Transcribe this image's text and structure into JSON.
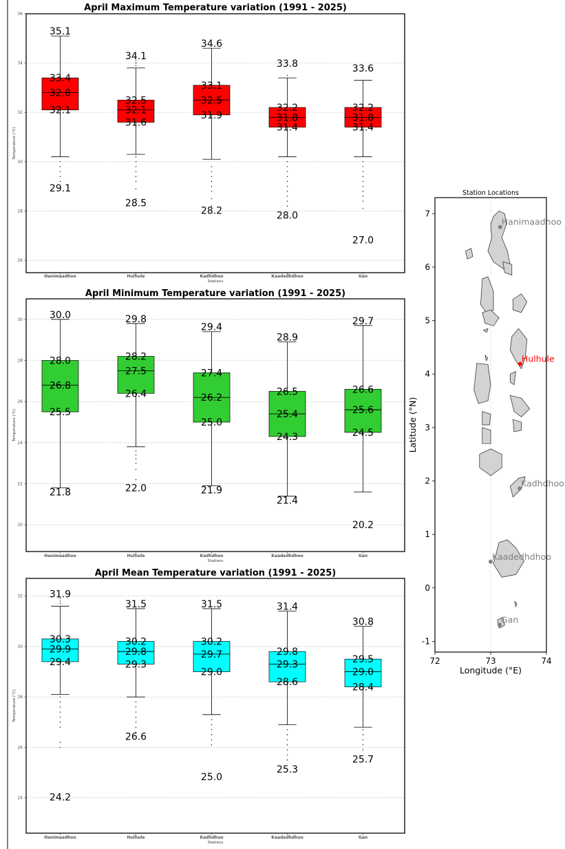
{
  "chart_data": [
    {
      "type": "boxplot",
      "title": "April Maximum Temperature variation (1991 - 2025)",
      "xlabel": "Stations",
      "ylabel": "Temperature (°C)",
      "ylim": [
        25.5,
        36
      ],
      "yticks": [
        26,
        28,
        30,
        32,
        34,
        36
      ],
      "box_color": "#ff0000",
      "highlight_category": "Hulhule",
      "highlight_color": "#ff0000",
      "categories": [
        "Hanimaadhoo",
        "Hulhule",
        "Kadhdhoo",
        "Kaadedhdhoo",
        "Gan"
      ],
      "stats": [
        {
          "whisker_low": 30.2,
          "q1": 32.1,
          "median": 32.8,
          "q3": 33.4,
          "whisker_high": 35.1,
          "min": 29.1,
          "max": 35.1,
          "outliers": [
            29.2,
            29.4,
            29.6,
            29.8,
            30.0
          ]
        },
        {
          "whisker_low": 30.3,
          "q1": 31.6,
          "median": 32.1,
          "q3": 32.5,
          "whisker_high": 33.8,
          "min": 28.5,
          "max": 34.1,
          "outliers": [
            28.5,
            28.9,
            29.2,
            29.4,
            29.6,
            29.8,
            30.0,
            30.2,
            33.9,
            34.0,
            34.1
          ]
        },
        {
          "whisker_low": 30.1,
          "q1": 31.9,
          "median": 32.5,
          "q3": 33.1,
          "whisker_high": 34.6,
          "min": 28.2,
          "max": 34.6,
          "outliers": [
            28.2,
            28.5,
            28.8,
            29.0,
            29.2,
            29.4,
            29.6,
            29.8
          ]
        },
        {
          "whisker_low": 30.2,
          "q1": 31.4,
          "median": 31.8,
          "q3": 32.2,
          "whisker_high": 33.4,
          "min": 28.0,
          "max": 33.8,
          "outliers": [
            28.2,
            28.4,
            28.6,
            28.8,
            29.0,
            29.2,
            29.4,
            29.6,
            29.8,
            30.0,
            33.5
          ]
        },
        {
          "whisker_low": 30.2,
          "q1": 31.4,
          "median": 31.8,
          "q3": 32.2,
          "whisker_high": 33.3,
          "min": 27.0,
          "max": 33.6,
          "outliers": [
            28.1,
            28.4,
            28.6,
            28.8,
            29.0,
            29.2,
            29.4,
            29.6,
            29.8,
            30.0
          ]
        }
      ],
      "labels": [
        {
          "max": "35.1",
          "q3": "33.4",
          "median": "32.8",
          "q1": "32.1",
          "min": "29.1"
        },
        {
          "max": "34.1",
          "q3": "32.5",
          "median": "32.1",
          "q1": "31.6",
          "min": "28.5"
        },
        {
          "max": "34.6",
          "q3": "33.1",
          "median": "32.5",
          "q1": "31.9",
          "min": "28.2"
        },
        {
          "max": "33.8",
          "q3": "32.2",
          "median": "31.8",
          "q1": "31.4",
          "min": "28.0"
        },
        {
          "max": "33.6",
          "q3": "32.2",
          "median": "31.8",
          "q1": "31.4",
          "min": "27.0"
        }
      ],
      "grid": true
    },
    {
      "type": "boxplot",
      "title": "April Minimum Temperature variation (1991 - 2025)",
      "xlabel": "Stations",
      "ylabel": "Temperature (°C)",
      "ylim": [
        18.7,
        31.0
      ],
      "yticks": [
        20,
        22,
        24,
        26,
        28,
        30
      ],
      "box_color": "#32cd32",
      "highlight_category": "Hulhule",
      "highlight_color": "#ff0000",
      "categories": [
        "Hanimaadhoo",
        "Hulhule",
        "Kadhdhoo",
        "Kaadedhdhoo",
        "Gan"
      ],
      "stats": [
        {
          "whisker_low": 21.8,
          "q1": 25.5,
          "median": 26.8,
          "q3": 28.0,
          "whisker_high": 30.0,
          "min": 21.8,
          "max": 30.0,
          "outliers": []
        },
        {
          "whisker_low": 23.8,
          "q1": 26.4,
          "median": 27.5,
          "q3": 28.2,
          "whisker_high": 29.8,
          "min": 22.0,
          "max": 29.8,
          "outliers": [
            22.2,
            22.7,
            23.0,
            23.2,
            23.4,
            23.6
          ]
        },
        {
          "whisker_low": 21.9,
          "q1": 25.0,
          "median": 26.2,
          "q3": 27.4,
          "whisker_high": 29.4,
          "min": 21.9,
          "max": 29.4,
          "outliers": []
        },
        {
          "whisker_low": 21.4,
          "q1": 24.3,
          "median": 25.4,
          "q3": 26.5,
          "whisker_high": 28.9,
          "min": 21.4,
          "max": 28.9,
          "outliers": []
        },
        {
          "whisker_low": 21.6,
          "q1": 24.5,
          "median": 25.6,
          "q3": 26.6,
          "whisker_high": 29.7,
          "min": 20.2,
          "max": 29.7,
          "outliers": []
        }
      ],
      "labels": [
        {
          "max": "30.0",
          "q3": "28.0",
          "median": "26.8",
          "q1": "25.5",
          "min": "21.8"
        },
        {
          "max": "29.8",
          "q3": "28.2",
          "median": "27.5",
          "q1": "26.4",
          "min": "22.0"
        },
        {
          "max": "29.4",
          "q3": "27.4",
          "median": "26.2",
          "q1": "25.0",
          "min": "21.9"
        },
        {
          "max": "28.9",
          "q3": "26.5",
          "median": "25.4",
          "q1": "24.3",
          "min": "21.4"
        },
        {
          "max": "29.7",
          "q3": "26.6",
          "median": "25.6",
          "q1": "24.5",
          "min": "20.2"
        }
      ],
      "grid": true
    },
    {
      "type": "boxplot",
      "title": "April Mean Temperature variation (1991 - 2025)",
      "xlabel": "Stations",
      "ylabel": "Temperature (°C)",
      "ylim": [
        22.6,
        32.7
      ],
      "yticks": [
        24,
        26,
        28,
        30,
        32
      ],
      "box_color": "#00ffff",
      "highlight_category": "Hulhule",
      "highlight_color": "#ff0000",
      "categories": [
        "Hanimaadhoo",
        "Hulhule",
        "Kadhdhoo",
        "Kaadedhdhoo",
        "Gan"
      ],
      "stats": [
        {
          "whisker_low": 28.1,
          "q1": 29.4,
          "median": 29.9,
          "q3": 30.3,
          "whisker_high": 31.6,
          "min": 24.2,
          "max": 31.9,
          "outliers": [
            26.0,
            26.2,
            26.8,
            27.0,
            27.2,
            27.4,
            27.6,
            27.8,
            28.0,
            31.7,
            31.8,
            31.9
          ]
        },
        {
          "whisker_low": 28.0,
          "q1": 29.3,
          "median": 29.8,
          "q3": 30.2,
          "whisker_high": 31.5,
          "min": 26.6,
          "max": 31.5,
          "outliers": [
            26.6,
            26.8,
            27.0,
            27.2,
            27.4,
            27.6,
            27.8
          ]
        },
        {
          "whisker_low": 27.3,
          "q1": 29.0,
          "median": 29.7,
          "q3": 30.2,
          "whisker_high": 31.5,
          "min": 25.0,
          "max": 31.5,
          "outliers": [
            26.1,
            26.3,
            26.5,
            26.7,
            26.9,
            27.1
          ]
        },
        {
          "whisker_low": 26.9,
          "q1": 28.6,
          "median": 29.3,
          "q3": 29.8,
          "whisker_high": 31.4,
          "min": 25.3,
          "max": 31.4,
          "outliers": [
            25.5,
            25.7,
            25.9,
            26.1,
            26.3,
            26.5,
            26.7
          ]
        },
        {
          "whisker_low": 26.8,
          "q1": 28.4,
          "median": 29.0,
          "q3": 29.5,
          "whisker_high": 30.8,
          "min": 25.7,
          "max": 30.8,
          "outliers": [
            25.9,
            26.1,
            26.3,
            26.5,
            26.7
          ]
        }
      ],
      "labels": [
        {
          "max": "31.9",
          "q3": "30.3",
          "median": "29.9",
          "q1": "29.4",
          "min": "24.2"
        },
        {
          "max": "31.5",
          "q3": "30.2",
          "median": "29.8",
          "q1": "29.3",
          "min": "26.6"
        },
        {
          "max": "31.5",
          "q3": "30.2",
          "median": "29.7",
          "q1": "29.0",
          "min": "25.0"
        },
        {
          "max": "31.4",
          "q3": "29.8",
          "median": "29.3",
          "q1": "28.6",
          "min": "25.3"
        },
        {
          "max": "30.8",
          "q3": "29.5",
          "median": "29.0",
          "q1": "28.4",
          "min": "25.7"
        }
      ],
      "grid": true
    },
    {
      "type": "map",
      "title": "Station Locations",
      "xlabel": "Longitude (°E)",
      "ylabel": "Latitude (°N)",
      "xlim": [
        72,
        74
      ],
      "ylim": [
        -1.2,
        7.3
      ],
      "xticks": [
        72,
        73,
        74
      ],
      "yticks": [
        -1,
        0,
        1,
        2,
        3,
        4,
        5,
        6,
        7
      ],
      "land_color": "#d3d3d3",
      "stations": [
        {
          "name": "Hanimaadhoo",
          "lon": 73.17,
          "lat": 6.75,
          "color": "#808080"
        },
        {
          "name": "Hulhule",
          "lon": 73.53,
          "lat": 4.19,
          "color": "#ff0000"
        },
        {
          "name": "Kadhdhoo",
          "lon": 73.52,
          "lat": 1.86,
          "color": "#808080"
        },
        {
          "name": "Kaadedhdhoo",
          "lon": 73.0,
          "lat": 0.49,
          "color": "#808080"
        },
        {
          "name": "Gan",
          "lon": 73.16,
          "lat": -0.69,
          "color": "#808080"
        }
      ]
    }
  ]
}
